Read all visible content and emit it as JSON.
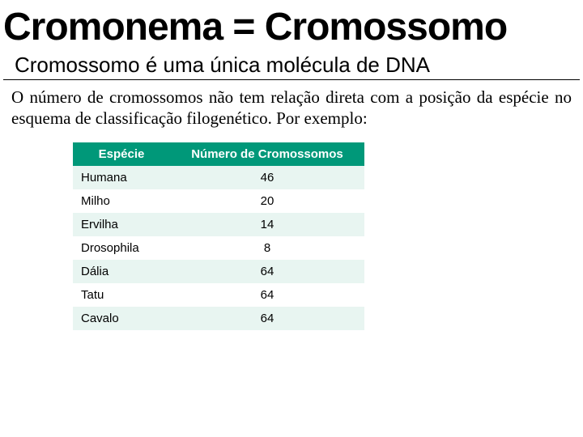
{
  "title": "Cromonema = Cromossomo",
  "subtitle": "Cromossomo é uma única molécula de DNA",
  "paragraph": "O número de cromossomos não tem relação direta com a posição da espécie no esquema de classificação filogenético. Por exemplo:",
  "table": {
    "header_bg": "#009879",
    "header_fg": "#ffffff",
    "row_even_bg": "#e8f5f1",
    "row_odd_bg": "#ffffff",
    "columns": [
      "Espécie",
      "Número de Cromossomos"
    ],
    "rows": [
      [
        "Humana",
        "46"
      ],
      [
        "Milho",
        "20"
      ],
      [
        "Ervilha",
        "14"
      ],
      [
        "Drosophila",
        "8"
      ],
      [
        "Dália",
        "64"
      ],
      [
        "Tatu",
        "64"
      ],
      [
        "Cavalo",
        "64"
      ]
    ]
  }
}
